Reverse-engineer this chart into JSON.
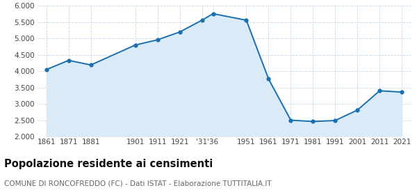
{
  "years": [
    1861,
    1871,
    1881,
    1901,
    1911,
    1921,
    1931,
    1936,
    1951,
    1961,
    1971,
    1981,
    1991,
    2001,
    2011,
    2021
  ],
  "population": [
    4050,
    4330,
    4190,
    4800,
    4960,
    5200,
    5560,
    5760,
    5560,
    3760,
    2500,
    2460,
    2490,
    2810,
    3400,
    3360
  ],
  "xtick_years": [
    1861,
    1871,
    1881,
    1901,
    1911,
    1921,
    1931,
    1936,
    1951,
    1961,
    1971,
    1981,
    1991,
    2001,
    2011,
    2021
  ],
  "xtick_labels": [
    "1861",
    "1871",
    "1881",
    "1901",
    "1911",
    "1921",
    "'31",
    "'36",
    "1951",
    "1961",
    "1971",
    "1981",
    "1991",
    "2001",
    "2011",
    "2021"
  ],
  "ylim": [
    2000,
    6000
  ],
  "yticks": [
    2000,
    2500,
    3000,
    3500,
    4000,
    4500,
    5000,
    5500,
    6000
  ],
  "line_color": "#1a6faf",
  "fill_color": "#daeaf7",
  "marker_color": "#1a6faf",
  "bg_color": "#FFFFFF",
  "grid_color": "#c5d8ea",
  "title": "Popolazione residente ai censimenti",
  "subtitle": "COMUNE DI RONCOFREDDO (FC) - Dati ISTAT - Elaborazione TUTTITALIA.IT",
  "title_fontsize": 10.5,
  "subtitle_fontsize": 7.5,
  "tick_fontsize": 7.5,
  "marker_size": 4.5
}
